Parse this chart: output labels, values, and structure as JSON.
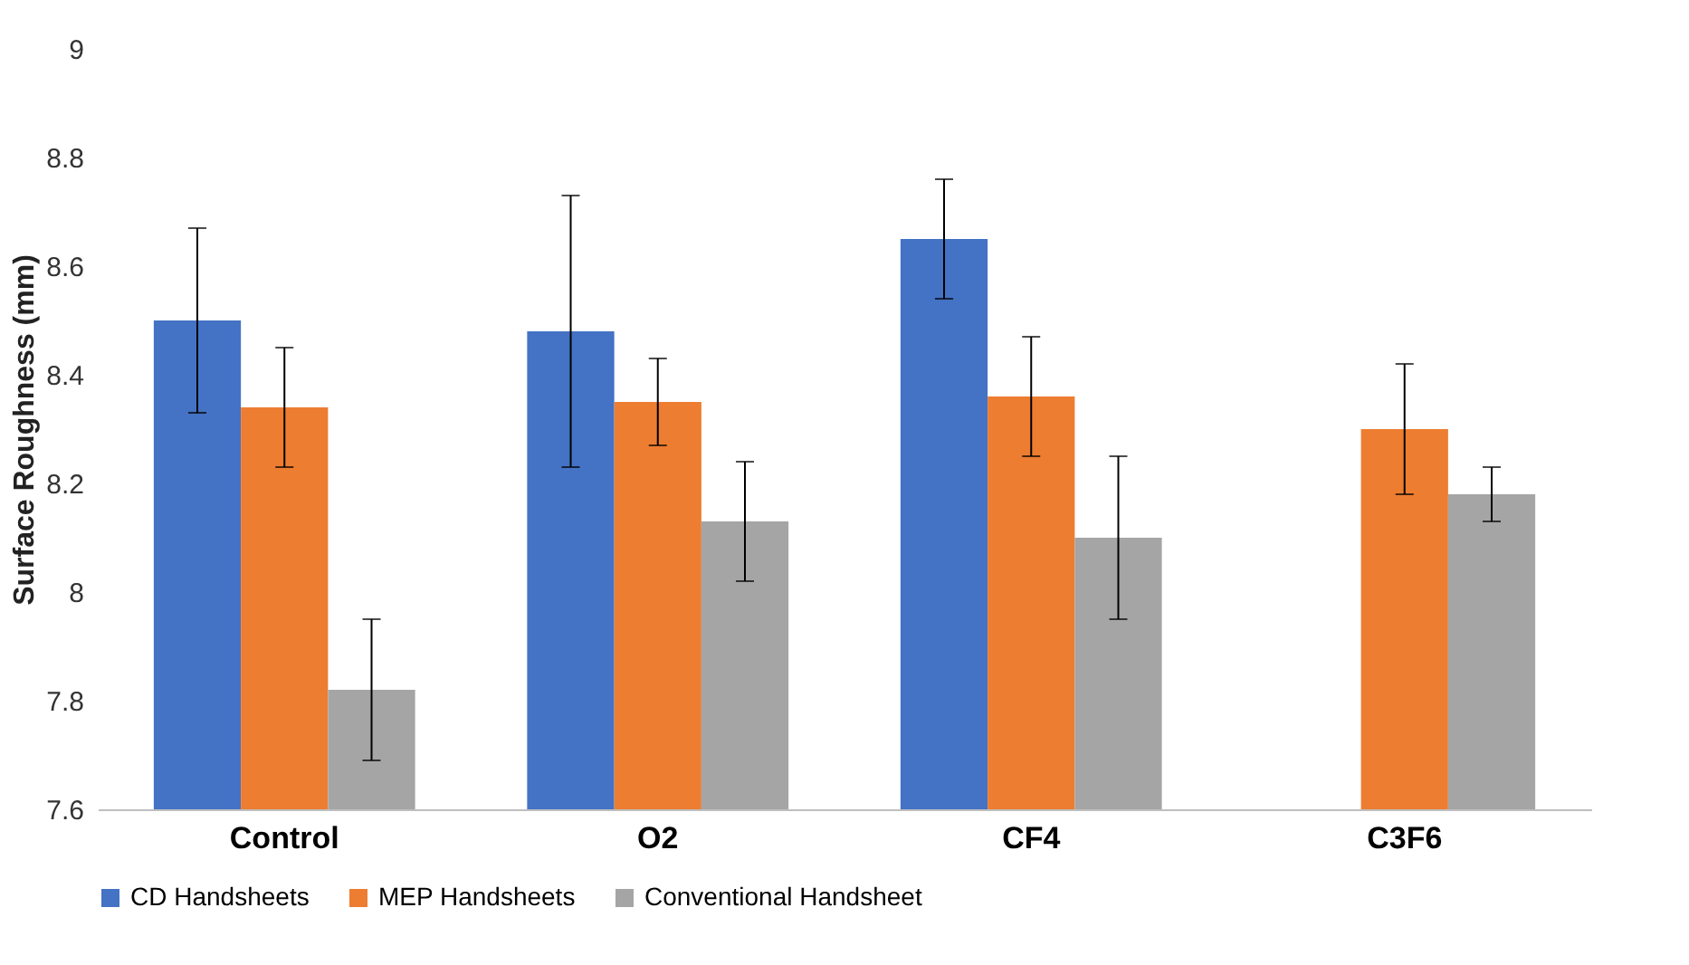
{
  "chart_data": {
    "type": "bar",
    "ylabel": "Surface Roughness (mm)",
    "categories": [
      "Control",
      "O2",
      "CF4",
      "C3F6"
    ],
    "series": [
      {
        "name": "CD Handsheets",
        "color": "#4472c4",
        "values": [
          8.5,
          8.48,
          8.65,
          null
        ],
        "errors": [
          [
            8.33,
            8.67
          ],
          [
            8.23,
            8.73
          ],
          [
            8.54,
            8.76
          ],
          null
        ]
      },
      {
        "name": "MEP Handsheets",
        "color": "#ed7d31",
        "values": [
          8.34,
          8.35,
          8.36,
          8.3
        ],
        "errors": [
          [
            8.23,
            8.45
          ],
          [
            8.27,
            8.43
          ],
          [
            8.25,
            8.47
          ],
          [
            8.18,
            8.42
          ]
        ]
      },
      {
        "name": "Conventional Handsheet",
        "color": "#a5a5a5",
        "values": [
          7.82,
          8.13,
          8.1,
          8.18
        ],
        "errors": [
          [
            7.69,
            7.95
          ],
          [
            8.02,
            8.24
          ],
          [
            7.95,
            8.25
          ],
          [
            8.13,
            8.23
          ]
        ]
      }
    ],
    "ylim": [
      7.6,
      9
    ],
    "yticks": [
      7.6,
      7.8,
      8,
      8.2,
      8.4,
      8.6,
      8.8,
      9
    ],
    "grid": false,
    "legend": "bottom"
  }
}
